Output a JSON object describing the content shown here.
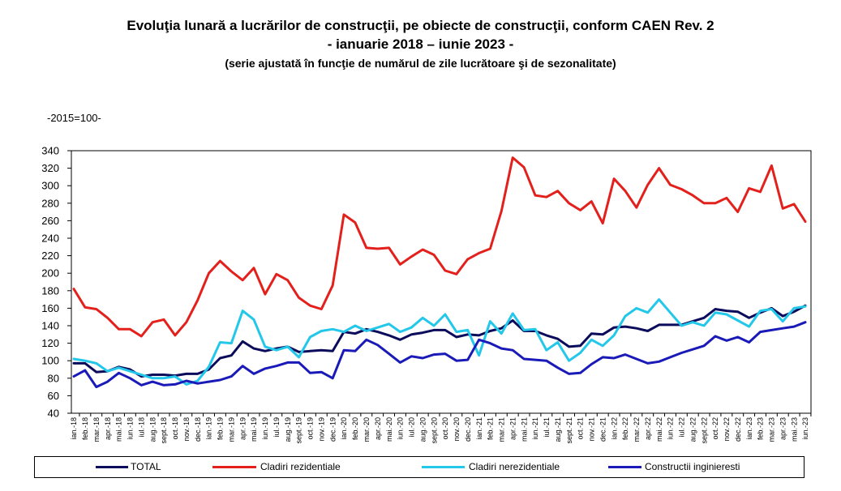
{
  "chart_data": {
    "type": "line",
    "title": "Evoluţia lunară a lucrărilor de construcţii, pe obiecte de construcţii, conform CAEN Rev. 2",
    "subtitle": "- ianuarie 2018 – iunie 2023 -",
    "subtitle_2": "(serie ajustată în funcţie de numărul de zile lucrătoare şi de sezonalitate)",
    "unit": "-2015=100-",
    "ylim": [
      40,
      340
    ],
    "yticks": [
      40,
      60,
      80,
      100,
      120,
      140,
      160,
      180,
      200,
      220,
      240,
      260,
      280,
      300,
      320,
      340
    ],
    "grid": false,
    "legend_position": "bottom",
    "categories": [
      "ian.-18",
      "feb.-18",
      "mar.-18",
      "apr.-18",
      "mai.-18",
      "iun.-18",
      "iul.-18",
      "aug.-18",
      "sept.-18",
      "oct.-18",
      "nov.-18",
      "dec.-18",
      "ian.-19",
      "feb.-19",
      "mar.-19",
      "apr.-19",
      "mai.-19",
      "iun.-19",
      "iul.-19",
      "aug.-19",
      "sept.-19",
      "oct.-19",
      "nov.-19",
      "dec.-19",
      "ian.-20",
      "feb.-20",
      "mar.-20",
      "apr.-20",
      "mai.-20",
      "iun.-20",
      "iul.-20",
      "aug.-20",
      "sept.-20",
      "oct.-20",
      "nov.-20",
      "dec.-20",
      "ian.-21",
      "feb.-21",
      "mar.-21",
      "apr.-21",
      "mai.-21",
      "iun.-21",
      "iul.-21",
      "aug.-21",
      "sept.-21",
      "oct.-21",
      "nov.-21",
      "dec.-21",
      "ian.-22",
      "feb.-22",
      "mar.-22",
      "apr.-22",
      "mai.-22",
      "iun.-22",
      "iul.-22",
      "aug.-22",
      "sept.-22",
      "oct.-22",
      "nov.-22",
      "dec.-22",
      "ian.-23",
      "feb.-23",
      "mar.-23",
      "apr.-23",
      "mai.-23",
      "iun.-23"
    ],
    "series": [
      {
        "name": "TOTAL",
        "color": "#0b0b5c",
        "values": [
          97,
          97,
          87,
          88,
          93,
          90,
          82,
          84,
          84,
          83,
          85,
          85,
          90,
          103,
          106,
          122,
          114,
          111,
          114,
          116,
          110,
          111,
          112,
          111,
          133,
          131,
          136,
          133,
          129,
          124,
          130,
          132,
          135,
          135,
          127,
          130,
          129,
          134,
          137,
          146,
          134,
          134,
          129,
          125,
          116,
          117,
          131,
          130,
          138,
          139,
          137,
          134,
          141,
          141,
          141,
          145,
          149,
          159,
          157,
          156,
          149,
          155,
          160,
          151,
          156,
          163
        ]
      },
      {
        "name": "Cladiri rezidentiale",
        "color": "#e3201c",
        "values": [
          182,
          161,
          159,
          149,
          136,
          136,
          128,
          144,
          147,
          129,
          144,
          169,
          200,
          214,
          202,
          192,
          206,
          176,
          199,
          192,
          172,
          163,
          159,
          186,
          267,
          258,
          229,
          228,
          229,
          210,
          219,
          227,
          221,
          203,
          199,
          216,
          223,
          228,
          271,
          332,
          321,
          289,
          287,
          294,
          280,
          272,
          282,
          257,
          308,
          294,
          275,
          301,
          320,
          301,
          296,
          289,
          280,
          280,
          286,
          270,
          297,
          293,
          323,
          274,
          279,
          259
        ]
      },
      {
        "name": "Cladiri nerezidentiale",
        "color": "#22c7ea",
        "values": [
          102,
          100,
          97,
          88,
          92,
          88,
          84,
          80,
          80,
          82,
          73,
          77,
          93,
          121,
          120,
          157,
          147,
          116,
          112,
          116,
          104,
          127,
          134,
          136,
          133,
          140,
          134,
          138,
          142,
          133,
          138,
          149,
          140,
          153,
          133,
          135,
          106,
          145,
          131,
          154,
          135,
          136,
          112,
          121,
          100,
          109,
          124,
          117,
          129,
          151,
          160,
          155,
          170,
          155,
          140,
          144,
          140,
          155,
          153,
          146,
          139,
          157,
          159,
          145,
          160,
          162
        ]
      },
      {
        "name": "Constructii inginieresti",
        "color": "#1a1ab8",
        "values": [
          82,
          89,
          70,
          76,
          86,
          80,
          72,
          76,
          72,
          73,
          77,
          74,
          76,
          78,
          82,
          94,
          85,
          91,
          94,
          98,
          98,
          86,
          87,
          80,
          112,
          111,
          124,
          118,
          108,
          98,
          105,
          103,
          107,
          108,
          100,
          101,
          124,
          120,
          114,
          112,
          102,
          101,
          100,
          92,
          85,
          86,
          96,
          104,
          103,
          107,
          102,
          97,
          99,
          104,
          109,
          113,
          117,
          128,
          123,
          127,
          121,
          133,
          135,
          137,
          139,
          144
        ]
      }
    ]
  }
}
